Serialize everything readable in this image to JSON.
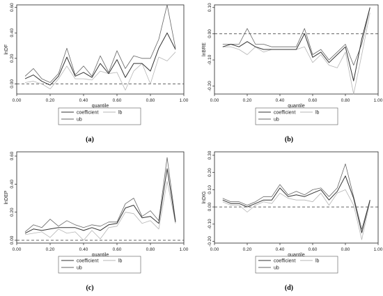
{
  "chart_data": [
    {
      "type": "line",
      "panel_label": "(a)",
      "xlabel": "quantile",
      "ylabel": "lnDF",
      "xlim": [
        0,
        1
      ],
      "ylim": [
        -0.08,
        0.62
      ],
      "xticks": [
        "0.00",
        "0.20",
        "0.40",
        "0.60",
        "0.80",
        "1.00"
      ],
      "xtick_values": [
        0,
        0.2,
        0.4,
        0.6,
        0.8,
        1.0
      ],
      "yticks": [
        "0.00",
        "0.20",
        "0.40",
        "0.60"
      ],
      "ytick_values": [
        0,
        0.2,
        0.4,
        0.6
      ],
      "reference_line": 0,
      "x": [
        0.05,
        0.1,
        0.15,
        0.2,
        0.25,
        0.3,
        0.35,
        0.4,
        0.45,
        0.5,
        0.55,
        0.6,
        0.65,
        0.7,
        0.75,
        0.8,
        0.85,
        0.9,
        0.95
      ],
      "series": [
        {
          "name": "coefficient",
          "color": "#333333",
          "values": [
            0.04,
            0.07,
            0.02,
            -0.01,
            0.06,
            0.21,
            0.06,
            0.09,
            0.05,
            0.16,
            0.08,
            0.19,
            0.05,
            0.16,
            0.16,
            0.1,
            0.28,
            0.4,
            0.27
          ]
        },
        {
          "name": "lb",
          "color": "#b5b5b5",
          "values": [
            0.01,
            0.02,
            0.0,
            -0.04,
            0.04,
            0.14,
            0.04,
            0.04,
            0.03,
            0.1,
            0.08,
            0.09,
            -0.05,
            0.1,
            0.16,
            0.0,
            0.21,
            0.18,
            0.25
          ]
        },
        {
          "name": "ub",
          "color": "#666666",
          "values": [
            0.06,
            0.12,
            0.04,
            0.01,
            0.08,
            0.28,
            0.07,
            0.14,
            0.06,
            0.22,
            0.09,
            0.26,
            0.12,
            0.22,
            0.2,
            0.2,
            0.35,
            0.62,
            0.28
          ]
        }
      ]
    },
    {
      "type": "line",
      "panel_label": "(b)",
      "xlabel": "quantile",
      "ylabel": "lnBRE",
      "xlim": [
        0,
        1
      ],
      "ylim": [
        -0.23,
        0.11
      ],
      "xticks": [
        "0.00",
        "0.20",
        "0.40",
        "0.60",
        "0.80",
        "1.00"
      ],
      "xtick_values": [
        0,
        0.2,
        0.4,
        0.6,
        0.8,
        1.0
      ],
      "yticks": [
        "-0.20",
        "-0.10",
        "0.00",
        "0.10"
      ],
      "ytick_values": [
        -0.2,
        -0.1,
        0,
        0.1
      ],
      "reference_line": 0,
      "x": [
        0.05,
        0.1,
        0.15,
        0.2,
        0.25,
        0.3,
        0.35,
        0.4,
        0.45,
        0.5,
        0.55,
        0.6,
        0.65,
        0.7,
        0.75,
        0.8,
        0.85,
        0.9,
        0.95
      ],
      "series": [
        {
          "name": "coefficient",
          "color": "#333333",
          "values": [
            -0.05,
            -0.04,
            -0.05,
            -0.03,
            -0.05,
            -0.06,
            -0.06,
            -0.06,
            -0.06,
            -0.06,
            0.0,
            -0.09,
            -0.07,
            -0.11,
            -0.08,
            -0.05,
            -0.18,
            -0.02,
            0.1
          ]
        },
        {
          "name": "lb",
          "color": "#b5b5b5",
          "values": [
            -0.05,
            -0.05,
            -0.06,
            -0.08,
            -0.05,
            -0.07,
            -0.06,
            -0.06,
            -0.06,
            -0.06,
            -0.05,
            -0.11,
            -0.08,
            -0.12,
            -0.13,
            -0.07,
            -0.23,
            -0.08,
            0.08
          ]
        },
        {
          "name": "ub",
          "color": "#666666",
          "values": [
            -0.04,
            -0.04,
            -0.04,
            0.02,
            -0.04,
            -0.04,
            -0.05,
            -0.05,
            -0.05,
            -0.05,
            0.02,
            -0.08,
            -0.06,
            -0.1,
            -0.07,
            -0.04,
            -0.12,
            -0.04,
            0.1
          ]
        }
      ]
    },
    {
      "type": "line",
      "panel_label": "(c)",
      "xlabel": "quantile",
      "ylabel": "lnDEP",
      "xlim": [
        0,
        1
      ],
      "ylim": [
        -0.02,
        0.63
      ],
      "xticks": [
        "0.00",
        "0.20",
        "0.40",
        "0.60",
        "0.80",
        "1.00"
      ],
      "xtick_values": [
        0,
        0.2,
        0.4,
        0.6,
        0.8,
        1.0
      ],
      "yticks": [
        "0.00",
        "0.20",
        "0.40",
        "0.60"
      ],
      "ytick_values": [
        0,
        0.2,
        0.4,
        0.6
      ],
      "reference_line": 0,
      "x": [
        0.05,
        0.1,
        0.15,
        0.2,
        0.25,
        0.3,
        0.35,
        0.4,
        0.45,
        0.5,
        0.55,
        0.6,
        0.65,
        0.7,
        0.75,
        0.8,
        0.85,
        0.9,
        0.95
      ],
      "series": [
        {
          "name": "coefficient",
          "color": "#333333",
          "values": [
            0.05,
            0.08,
            0.07,
            0.08,
            0.09,
            0.09,
            0.09,
            0.07,
            0.09,
            0.07,
            0.11,
            0.12,
            0.23,
            0.25,
            0.16,
            0.17,
            0.12,
            0.51,
            0.13
          ]
        },
        {
          "name": "lb",
          "color": "#b5b5b5",
          "values": [
            0.04,
            0.05,
            0.06,
            0.02,
            0.08,
            0.05,
            0.06,
            0.0,
            0.07,
            0.01,
            0.09,
            0.1,
            0.2,
            0.19,
            0.12,
            0.14,
            0.08,
            0.42,
            0.12
          ]
        },
        {
          "name": "ub",
          "color": "#666666",
          "values": [
            0.06,
            0.11,
            0.09,
            0.15,
            0.1,
            0.14,
            0.11,
            0.09,
            0.11,
            0.1,
            0.13,
            0.13,
            0.26,
            0.3,
            0.17,
            0.21,
            0.14,
            0.59,
            0.14
          ]
        }
      ]
    },
    {
      "type": "line",
      "panel_label": "(d)",
      "xlabel": "quantile",
      "ylabel": "lnDIG",
      "xlim": [
        0,
        1
      ],
      "ylim": [
        -0.21,
        0.32
      ],
      "xticks": [
        "0.00",
        "0.20",
        "0.40",
        "0.60",
        "0.80",
        "1.00"
      ],
      "xtick_values": [
        0,
        0.2,
        0.4,
        0.6,
        0.8,
        1.0
      ],
      "yticks": [
        "-0.20",
        "-0.10",
        "0.00",
        "0.10",
        "0.20",
        "0.30"
      ],
      "ytick_values": [
        -0.2,
        -0.1,
        0,
        0.1,
        0.2,
        0.3
      ],
      "reference_line": 0,
      "x": [
        0.05,
        0.1,
        0.15,
        0.2,
        0.25,
        0.3,
        0.35,
        0.4,
        0.45,
        0.5,
        0.55,
        0.6,
        0.65,
        0.7,
        0.75,
        0.8,
        0.85,
        0.9,
        0.95
      ],
      "series": [
        {
          "name": "coefficient",
          "color": "#333333",
          "values": [
            0.04,
            0.02,
            0.02,
            0.0,
            0.02,
            0.04,
            0.04,
            0.11,
            0.06,
            0.07,
            0.06,
            0.08,
            0.1,
            0.04,
            0.09,
            0.18,
            0.05,
            -0.15,
            0.04
          ]
        },
        {
          "name": "lb",
          "color": "#b5b5b5",
          "values": [
            0.03,
            0.01,
            0.01,
            -0.03,
            0.01,
            0.03,
            0.02,
            0.08,
            0.05,
            0.04,
            0.04,
            0.03,
            0.08,
            0.01,
            0.08,
            0.1,
            0.01,
            -0.19,
            0.03
          ]
        },
        {
          "name": "ub",
          "color": "#666666",
          "values": [
            0.05,
            0.03,
            0.03,
            0.01,
            0.03,
            0.06,
            0.06,
            0.13,
            0.07,
            0.09,
            0.07,
            0.1,
            0.11,
            0.06,
            0.11,
            0.25,
            0.06,
            -0.13,
            0.04
          ]
        }
      ]
    }
  ]
}
